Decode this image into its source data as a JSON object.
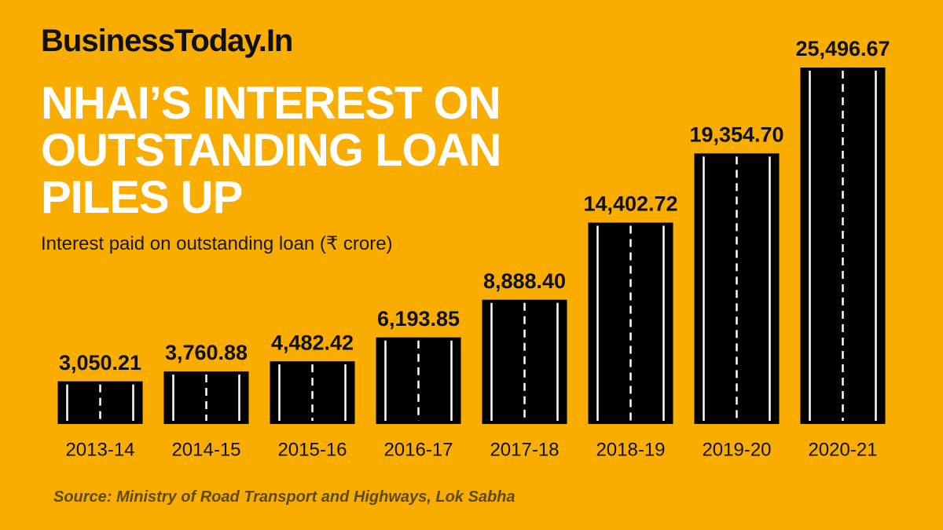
{
  "brand": "BusinessToday.In",
  "chart_data": {
    "type": "bar",
    "title": "NHAI’S INTEREST ON OUTSTANDING LOAN PILES UP",
    "subtitle": "Interest paid on outstanding loan (₹ crore)",
    "categories": [
      "2013-14",
      "2014-15",
      "2015-16",
      "2016-17",
      "2017-18",
      "2018-19",
      "2019-20",
      "2020-21"
    ],
    "values": [
      3050.21,
      3760.88,
      4482.42,
      6193.85,
      8888.4,
      14402.72,
      19354.7,
      25496.67
    ],
    "value_labels": [
      "3,050.21",
      "3,760.88",
      "4,482.42",
      "6,193.85",
      "8,888.40",
      "14,402.72",
      "19,354.70",
      "25,496.67"
    ],
    "color": "#000000",
    "source": "Source: Ministry of Road Transport and Highways, Lok Sabha"
  }
}
